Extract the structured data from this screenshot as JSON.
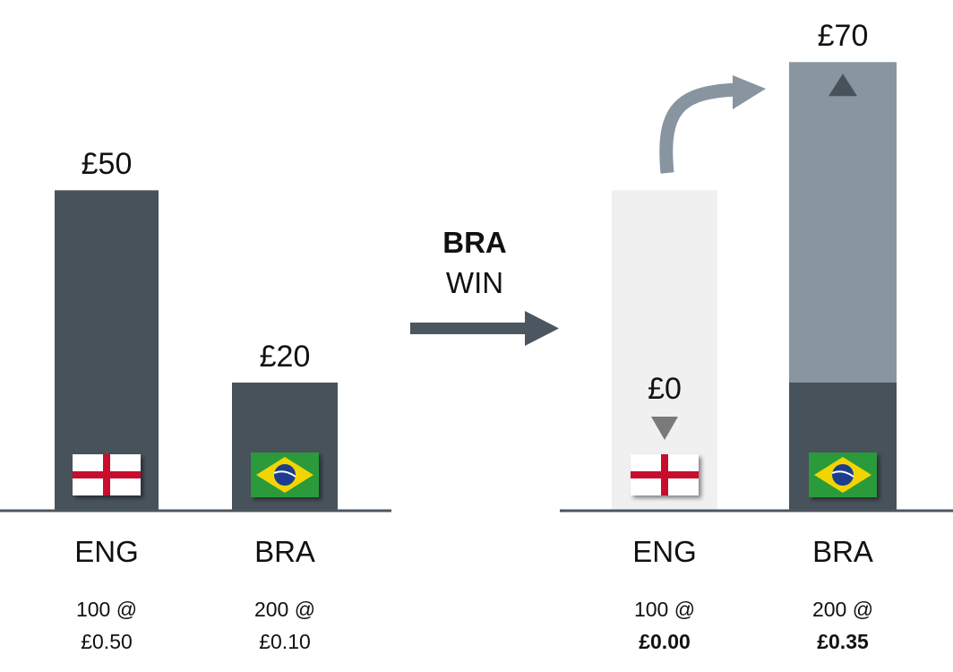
{
  "colors": {
    "bar_dark": "#48525b",
    "bar_light": "#8996a1",
    "bar_ghost": "#f0f0f0",
    "axis": "#4c5660",
    "arrow": "#4c5660",
    "curve_arrow": "#8895a1",
    "marker_up": "#48525b",
    "marker_down": "#7a7a7a"
  },
  "middle": {
    "outcome_team": "BRA",
    "outcome_word": "WIN",
    "arrow_icon": "right-arrow-icon"
  },
  "chart_data": [
    {
      "type": "bar",
      "categories": [
        "ENG",
        "BRA"
      ],
      "values": [
        50,
        20
      ],
      "ylim": [
        0,
        72
      ],
      "value_labels": [
        "£50",
        "£20"
      ],
      "flags": [
        "england-flag-icon",
        "brazil-flag-icon"
      ],
      "details": [
        {
          "line1": "100 @",
          "line2": "£0.50",
          "line2_bold": false
        },
        {
          "line1": "200 @",
          "line2": "£0.10",
          "line2_bold": false
        }
      ]
    },
    {
      "type": "bar",
      "categories": [
        "ENG",
        "BRA"
      ],
      "values": [
        0,
        70
      ],
      "previous_values": [
        50,
        20
      ],
      "ylim": [
        0,
        72
      ],
      "value_labels": [
        "£0",
        "£70"
      ],
      "change_markers": [
        "down-triangle-icon",
        "up-triangle-icon"
      ],
      "transfer_arrow": "curved-arrow-icon",
      "flags": [
        "england-flag-icon",
        "brazil-flag-icon"
      ],
      "details": [
        {
          "line1": "100 @",
          "line2": "£0.00",
          "line2_bold": true
        },
        {
          "line1": "200 @",
          "line2": "£0.35",
          "line2_bold": true
        }
      ]
    }
  ]
}
